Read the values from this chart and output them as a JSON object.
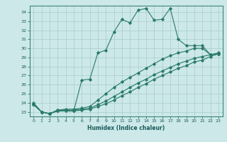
{
  "xlabel": "Humidex (Indice chaleur)",
  "bg_color": "#cce8e8",
  "grid_color": "#aacccc",
  "line_color": "#2a7a6a",
  "ylim": [
    22.5,
    34.7
  ],
  "xlim": [
    -0.5,
    23.5
  ],
  "yticks": [
    23,
    24,
    25,
    26,
    27,
    28,
    29,
    30,
    31,
    32,
    33,
    34
  ],
  "xticks": [
    0,
    1,
    2,
    3,
    4,
    5,
    6,
    7,
    8,
    9,
    10,
    11,
    12,
    13,
    14,
    15,
    16,
    17,
    18,
    19,
    20,
    21,
    22,
    23
  ],
  "series": [
    {
      "x": [
        0,
        1,
        2,
        3,
        4,
        5,
        6,
        7,
        8,
        9,
        10,
        11,
        12,
        13,
        14,
        15,
        16,
        17,
        18,
        19,
        20,
        21,
        22,
        23
      ],
      "y": [
        24.0,
        23.0,
        22.8,
        23.2,
        23.2,
        23.1,
        26.5,
        26.6,
        29.5,
        29.8,
        31.8,
        33.2,
        32.8,
        34.2,
        34.4,
        33.1,
        33.2,
        34.4,
        31.0,
        30.3,
        30.3,
        30.3,
        29.3,
        29.4
      ]
    },
    {
      "x": [
        0,
        1,
        2,
        3,
        4,
        5,
        6,
        7,
        8,
        9,
        10,
        11,
        12,
        13,
        14,
        15,
        16,
        17,
        18,
        19,
        20,
        21,
        22,
        23
      ],
      "y": [
        23.8,
        23.0,
        22.8,
        23.2,
        23.3,
        23.3,
        23.4,
        23.6,
        24.3,
        25.0,
        25.7,
        26.3,
        26.8,
        27.3,
        27.8,
        28.3,
        28.8,
        29.2,
        29.5,
        29.7,
        30.0,
        30.0,
        29.3,
        29.5
      ]
    },
    {
      "x": [
        0,
        1,
        2,
        3,
        4,
        5,
        6,
        7,
        8,
        9,
        10,
        11,
        12,
        13,
        14,
        15,
        16,
        17,
        18,
        19,
        20,
        21,
        22,
        23
      ],
      "y": [
        23.8,
        23.0,
        22.8,
        23.1,
        23.2,
        23.2,
        23.3,
        23.4,
        23.8,
        24.2,
        24.7,
        25.2,
        25.7,
        26.2,
        26.6,
        27.1,
        27.5,
        27.9,
        28.3,
        28.6,
        28.9,
        29.1,
        29.3,
        29.4
      ]
    },
    {
      "x": [
        0,
        1,
        2,
        3,
        4,
        5,
        6,
        7,
        8,
        9,
        10,
        11,
        12,
        13,
        14,
        15,
        16,
        17,
        18,
        19,
        20,
        21,
        22,
        23
      ],
      "y": [
        23.8,
        23.0,
        22.8,
        23.1,
        23.1,
        23.1,
        23.2,
        23.3,
        23.6,
        23.9,
        24.3,
        24.8,
        25.2,
        25.7,
        26.1,
        26.6,
        27.0,
        27.4,
        27.8,
        28.1,
        28.5,
        28.7,
        29.1,
        29.4
      ]
    }
  ]
}
